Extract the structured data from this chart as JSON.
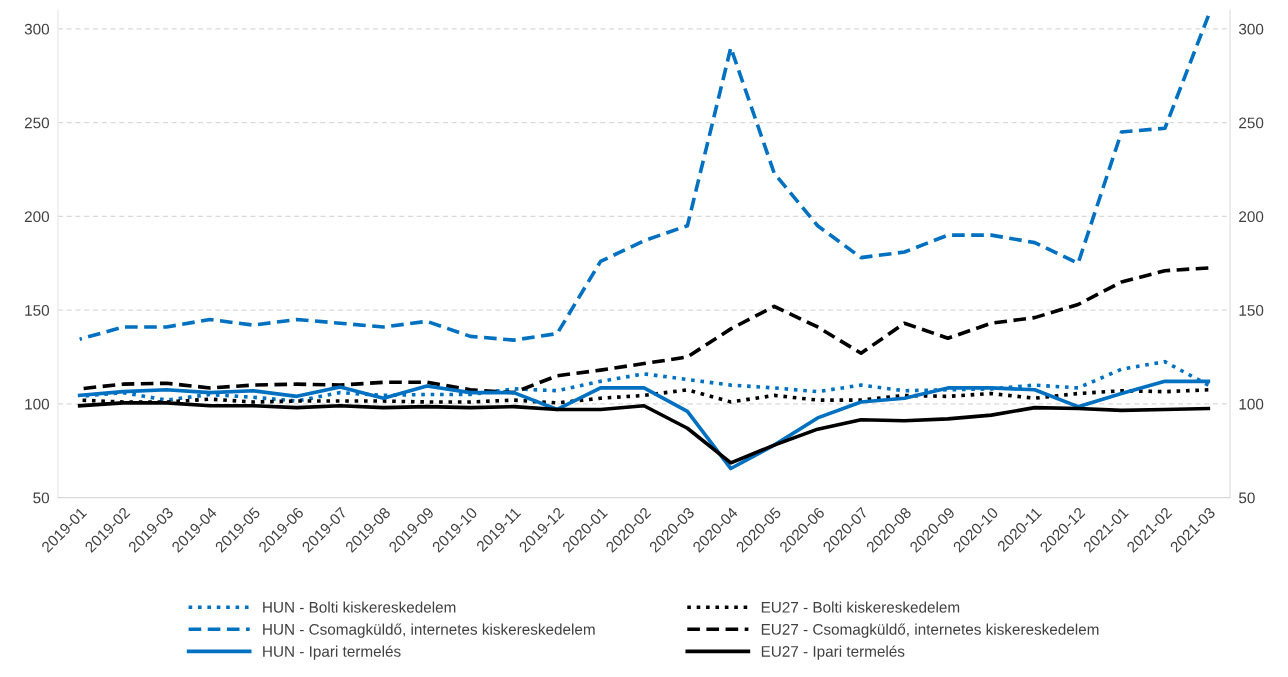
{
  "chart_data": {
    "type": "line",
    "categories": [
      "2019-01",
      "2019-02",
      "2019-03",
      "2019-04",
      "2019-05",
      "2019-06",
      "2019-07",
      "2019-08",
      "2019-09",
      "2019-10",
      "2019-11",
      "2019-12",
      "2020-01",
      "2020-02",
      "2020-03",
      "2020-04",
      "2020-05",
      "2020-06",
      "2020-07",
      "2020-08",
      "2020-09",
      "2020-10",
      "2020-11",
      "2020-12",
      "2021-01",
      "2021-02",
      "2021-03"
    ],
    "series": [
      {
        "name": "HUN - Bolti kiskereskedelem",
        "color": "#0070c0",
        "line_style": "dotted",
        "values": [
          104,
          106,
          102,
          105,
          103.5,
          101.5,
          106,
          104.5,
          105,
          105,
          108,
          107,
          112,
          116,
          113,
          110,
          108.5,
          106.5,
          110,
          107,
          107.5,
          108,
          110,
          108.5,
          118.5,
          122.5,
          110
        ]
      },
      {
        "name": "EU27 - Bolti kiskereskedelem",
        "color": "#000000",
        "line_style": "dotted",
        "values": [
          102,
          101,
          101,
          102.5,
          101,
          101.5,
          101.5,
          101.5,
          101,
          101,
          102,
          100.5,
          103,
          104.5,
          107.5,
          101,
          104.5,
          102,
          102,
          104.5,
          104,
          105.5,
          103,
          105.5,
          107,
          106.5,
          107.5
        ]
      },
      {
        "name": "HUN - Csomagküldő, internetes kiskereskedelem",
        "color": "#0070c0",
        "line_style": "dashed",
        "values": [
          134.5,
          141,
          141,
          145,
          142,
          145,
          143,
          141,
          144,
          136,
          134,
          137.5,
          176,
          187,
          195,
          290,
          223,
          195,
          178,
          181,
          190,
          190,
          186,
          175,
          245,
          247,
          307
        ]
      },
      {
        "name": "EU27 - Csomagküldő, internetes kiskereskedelem",
        "color": "#000000",
        "line_style": "dashed",
        "values": [
          108,
          110.5,
          111,
          108.5,
          110,
          110.5,
          110,
          111.5,
          111.5,
          107.5,
          106,
          115,
          118,
          121.5,
          125,
          140,
          152,
          141,
          127,
          143,
          135,
          143,
          146,
          153,
          165,
          171,
          172.5
        ]
      },
      {
        "name": "HUN - Ipari termelés",
        "color": "#0070c0",
        "line_style": "solid",
        "values": [
          104.5,
          106.5,
          107.5,
          106,
          107,
          104,
          109,
          103,
          109.5,
          106,
          106,
          97,
          108.5,
          108.5,
          96,
          65.5,
          78,
          92.5,
          101,
          103,
          108.5,
          108.5,
          107.5,
          98.5,
          105.5,
          112,
          112
        ]
      },
      {
        "name": "EU27 - Ipari termelés",
        "color": "#000000",
        "line_style": "solid",
        "values": [
          99,
          100.5,
          100.5,
          99,
          99,
          98,
          99,
          98,
          98.5,
          98,
          98.5,
          97,
          97,
          99,
          87,
          68.5,
          78,
          86.5,
          91.5,
          91,
          92,
          94,
          98,
          97.5,
          96.5,
          97,
          97.5
        ]
      }
    ],
    "ylim": [
      50,
      310
    ],
    "yticks": [
      50,
      100,
      150,
      200,
      250,
      300
    ],
    "y2lim": [
      50,
      310
    ],
    "y2ticks": [
      50,
      100,
      150,
      200,
      250,
      300
    ],
    "grid": "y",
    "legend": "bottom",
    "marker": "none"
  }
}
